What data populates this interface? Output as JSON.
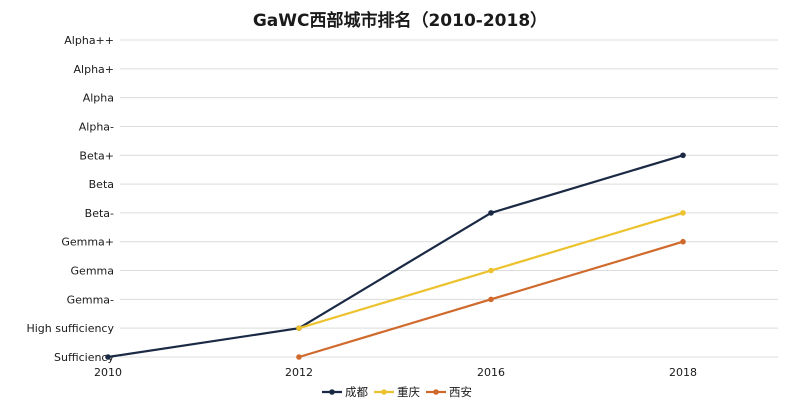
{
  "chart_data": {
    "type": "line",
    "title": "GaWC西部城市排名（2010-2018）",
    "xlabel": "",
    "ylabel": "",
    "x": [
      "2010",
      "2012",
      "2016",
      "2018"
    ],
    "y_categories": [
      "Sufficiency",
      "High sufficiency",
      "Gemma-",
      "Gemma",
      "Gemma+",
      "Beta-",
      "Beta",
      "Beta+",
      "Alpha-",
      "Alpha",
      "Alpha+",
      "Alpha++"
    ],
    "series": [
      {
        "name": "成都",
        "color": "#1b2a44",
        "values": [
          "Sufficiency",
          "High sufficiency",
          "Beta-",
          "Beta+"
        ]
      },
      {
        "name": "重庆",
        "color": "#ecc22e",
        "values": [
          null,
          "High sufficiency",
          "Gemma",
          "Beta-"
        ]
      },
      {
        "name": "西安",
        "color": "#cf6a2c",
        "values": [
          null,
          "Sufficiency",
          "Gemma-",
          "Gemma+"
        ]
      }
    ],
    "legend_position": "bottom-center",
    "grid": true
  }
}
